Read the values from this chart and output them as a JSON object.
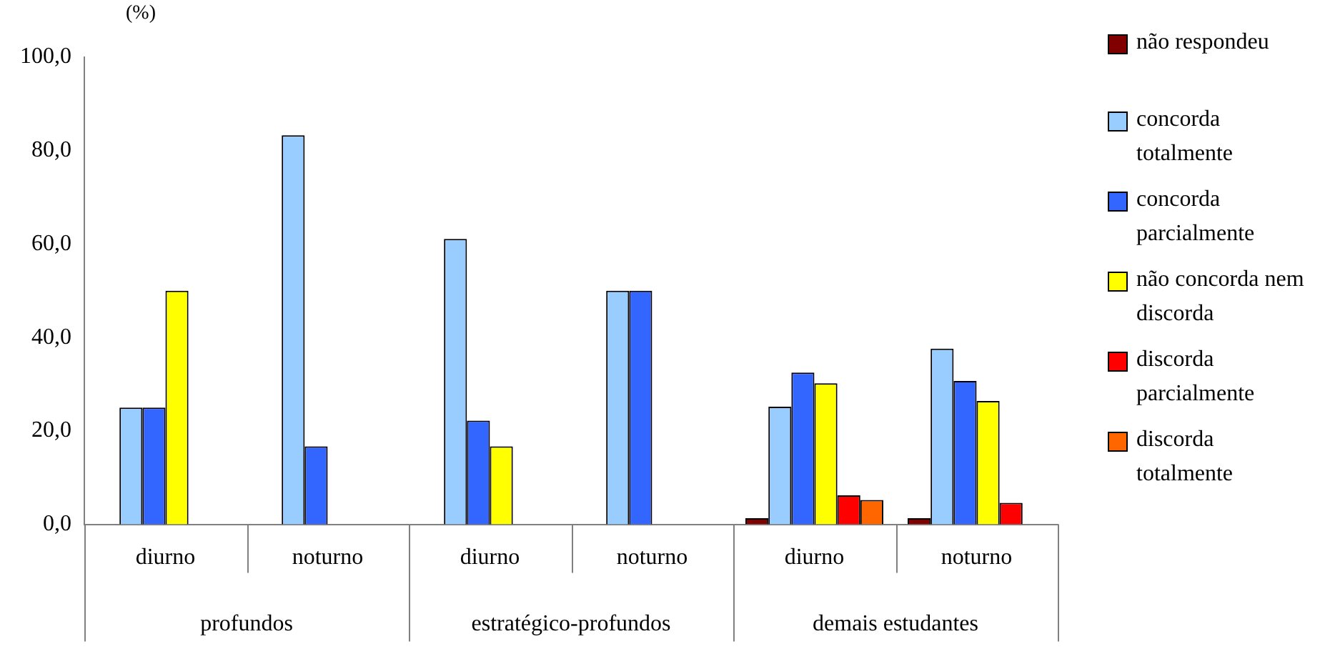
{
  "chart_data": {
    "type": "bar",
    "ylabel": "(%)",
    "categories": [
      "diurno",
      "noturno",
      "diurno",
      "noturno",
      "diurno",
      "noturno"
    ],
    "annotations": [
      "profundos",
      "estratégico-profundos",
      "demais estudantes"
    ],
    "series": [
      {
        "name": "não respondeu",
        "color": "#800000",
        "values": [
          null,
          null,
          null,
          null,
          1.3,
          1.3
        ]
      },
      {
        "name": "concorda totalmente",
        "color": "#99ccff",
        "values": [
          25,
          83.3,
          61.1,
          50,
          25.2,
          37.6
        ]
      },
      {
        "name": "concorda parcialmente",
        "color": "#3366ff",
        "values": [
          25,
          16.7,
          22.2,
          50,
          32.5,
          30.7
        ]
      },
      {
        "name": "não concorda nem discorda",
        "color": "#ffff00",
        "values": [
          50,
          null,
          16.7,
          null,
          30.2,
          26.4
        ]
      },
      {
        "name": "discorda parcialmente",
        "color": "#ff0000",
        "values": [
          null,
          null,
          null,
          null,
          6.2,
          4.6
        ]
      },
      {
        "name": "discorda totalmente",
        "color": "#ff6600",
        "values": [
          null,
          null,
          null,
          null,
          5.2,
          null
        ]
      }
    ],
    "ylim": [
      0,
      100
    ],
    "yticks": [
      {
        "value": 0,
        "label": "0,0"
      },
      {
        "value": 20,
        "label": "20,0"
      },
      {
        "value": 40,
        "label": "40,0"
      },
      {
        "value": 60,
        "label": "60,0"
      },
      {
        "value": 80,
        "label": "80,0"
      },
      {
        "value": 100,
        "label": "100,0"
      }
    ],
    "grid": false,
    "legend": "right"
  }
}
